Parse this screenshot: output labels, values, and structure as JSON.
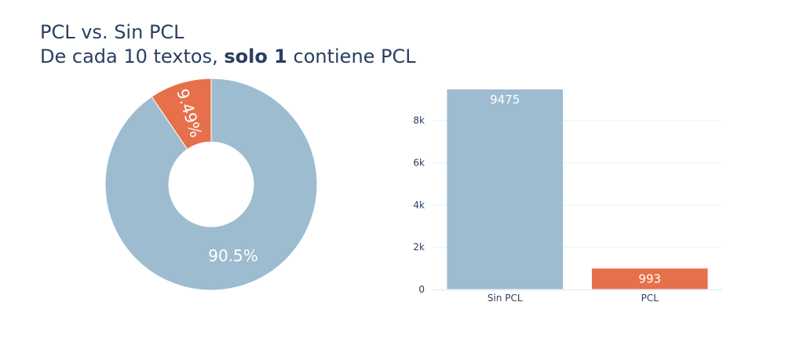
{
  "title": {
    "line1": "PCL vs. Sin PCL",
    "line2_prefix": "De cada 10 textos, ",
    "line2_bold": "solo 1",
    "line2_suffix": " contiene PCL"
  },
  "colors": {
    "sin_pcl": "#9dbcd0",
    "pcl": "#e6704b",
    "text": "#2a3f5f",
    "grid": "#ebf0f8"
  },
  "chart_data": [
    {
      "type": "pie",
      "hole": true,
      "categories": [
        "Sin PCL",
        "PCL"
      ],
      "values": [
        9475,
        993
      ],
      "percent_labels": [
        "90.5%",
        "9.49%"
      ]
    },
    {
      "type": "bar",
      "categories": [
        "Sin PCL",
        "PCL"
      ],
      "values": [
        9475,
        993
      ],
      "data_labels": [
        "9475",
        "993"
      ],
      "ylim": [
        0,
        9500
      ],
      "yticks": [
        0,
        2000,
        4000,
        6000,
        8000
      ],
      "ytick_labels": [
        "0",
        "2k",
        "4k",
        "6k",
        "8k"
      ],
      "grid": true
    }
  ]
}
